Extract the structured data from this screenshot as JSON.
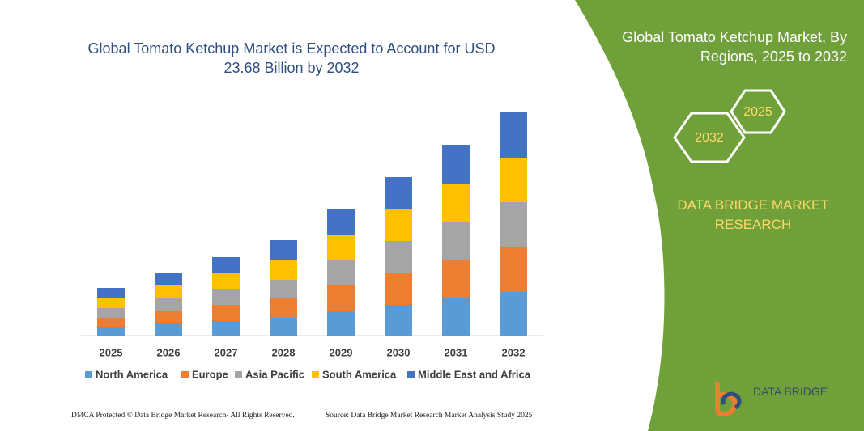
{
  "chart_data": {
    "type": "stacked-bar",
    "title": "Global Tomato Ketchup Market is Expected to Account for USD 23.68 Billion by 2032",
    "categories": [
      "2025",
      "2026",
      "2027",
      "2028",
      "2029",
      "2030",
      "2031",
      "2032"
    ],
    "series": [
      {
        "name": "North America",
        "color": "#5b9bd5",
        "values": [
          10,
          15,
          18,
          22,
          30,
          38,
          46,
          54
        ]
      },
      {
        "name": "Europe",
        "color": "#ed7d31",
        "values": [
          12,
          15,
          20,
          24,
          32,
          39,
          48,
          55
        ]
      },
      {
        "name": "Asia Pacific",
        "color": "#a5a5a5",
        "values": [
          12,
          16,
          20,
          23,
          31,
          40,
          47,
          56
        ]
      },
      {
        "name": "South America",
        "color": "#ffc000",
        "values": [
          12,
          16,
          19,
          24,
          32,
          40,
          47,
          55
        ]
      },
      {
        "name": "Middle East and Africa",
        "color": "#4472c4",
        "values": [
          13,
          15,
          20,
          25,
          32,
          39,
          48,
          56
        ]
      }
    ]
  },
  "side_panel": {
    "title": "Global Tomato Ketchup Market, By Regions, 2025 to 2032",
    "hexagons": [
      "2032",
      "2025"
    ],
    "brand": "DATA BRIDGE MARKET RESEARCH"
  },
  "footer": {
    "left": "DMCA Protected © Data Bridge Market Research- All Rights Reserved.",
    "right": "Source: Data Bridge Market Research Market Analysis Study 2025"
  },
  "logo": {
    "text": "DATA BRIDGE"
  }
}
